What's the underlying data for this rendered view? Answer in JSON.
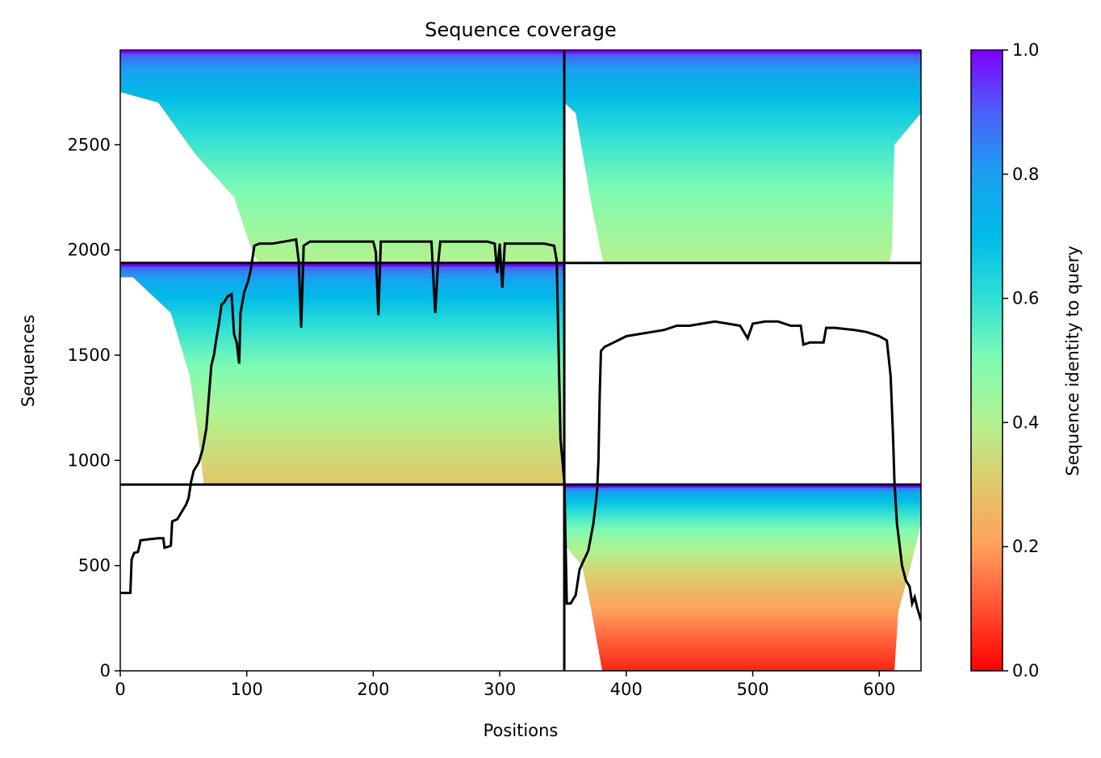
{
  "chart_data": {
    "type": "heatmap",
    "title": "Sequence coverage",
    "xlabel": "Positions",
    "ylabel": "Sequences",
    "xlim": [
      0,
      633
    ],
    "ylim": [
      0,
      2950
    ],
    "xticks": [
      0,
      100,
      200,
      300,
      400,
      500,
      600
    ],
    "yticks": [
      0,
      500,
      1000,
      1500,
      2000,
      2500
    ],
    "grid": false,
    "colorbar": {
      "label": "Sequence identity to query",
      "colormap": "rainbow_r",
      "range": [
        0.0,
        1.0
      ],
      "ticks": [
        "0.0",
        "0.2",
        "0.4",
        "0.6",
        "0.8",
        "1.0"
      ]
    },
    "colors": {
      "line": "#000000",
      "id_0.2": "#ff9f5c",
      "id_0.3": "#e0c96a",
      "id_0.4": "#b2f28f",
      "id_0.5": "#7ffbb3",
      "id_0.6": "#2fe0d6",
      "id_0.8": "#1aa0f0",
      "id_1.0": "#7f00ff"
    },
    "chain_boundaries": {
      "x": [
        351
      ],
      "y": [
        885,
        1938
      ]
    },
    "blocks": [
      {
        "x": [
          0,
          351
        ],
        "y": [
          1938,
          2950
        ],
        "identity_top": 1.0,
        "identity_bottom": 0.4
      },
      {
        "x": [
          0,
          351
        ],
        "y": [
          885,
          1938
        ],
        "identity_top": 1.0,
        "identity_bottom": 0.3
      },
      {
        "x": [
          351,
          633
        ],
        "y": [
          1938,
          2950
        ],
        "identity_top": 1.0,
        "identity_bottom": 0.4
      },
      {
        "x": [
          351,
          633
        ],
        "y": [
          0,
          885
        ],
        "identity_top": 1.0,
        "identity_bottom": 0.05
      }
    ],
    "series": [
      {
        "type": "line",
        "points": [
          [
            0,
            370
          ],
          [
            8,
            370
          ],
          [
            9,
            530
          ],
          [
            11,
            560
          ],
          [
            14,
            565
          ],
          [
            15,
            590
          ],
          [
            16,
            620
          ],
          [
            22,
            625
          ],
          [
            30,
            630
          ],
          [
            34,
            630
          ],
          [
            35,
            585
          ],
          [
            38,
            590
          ],
          [
            40,
            595
          ],
          [
            41,
            710
          ],
          [
            45,
            720
          ],
          [
            47,
            740
          ],
          [
            50,
            770
          ],
          [
            52,
            790
          ],
          [
            54,
            820
          ],
          [
            56,
            900
          ],
          [
            58,
            950
          ],
          [
            62,
            990
          ],
          [
            65,
            1050
          ],
          [
            68,
            1150
          ],
          [
            70,
            1300
          ],
          [
            72,
            1450
          ],
          [
            74,
            1500
          ],
          [
            76,
            1580
          ],
          [
            78,
            1650
          ],
          [
            80,
            1740
          ],
          [
            82,
            1750
          ],
          [
            85,
            1780
          ],
          [
            88,
            1790
          ],
          [
            90,
            1600
          ],
          [
            92,
            1560
          ],
          [
            94,
            1460
          ],
          [
            95,
            1700
          ],
          [
            98,
            1800
          ],
          [
            101,
            1850
          ],
          [
            103,
            1900
          ],
          [
            106,
            2020
          ],
          [
            110,
            2030
          ],
          [
            120,
            2030
          ],
          [
            130,
            2040
          ],
          [
            139,
            2050
          ],
          [
            141,
            1950
          ],
          [
            143,
            1630
          ],
          [
            145,
            2020
          ],
          [
            150,
            2040
          ],
          [
            160,
            2040
          ],
          [
            180,
            2040
          ],
          [
            200,
            2040
          ],
          [
            202,
            1990
          ],
          [
            204,
            1690
          ],
          [
            206,
            2040
          ],
          [
            220,
            2040
          ],
          [
            240,
            2040
          ],
          [
            246,
            2040
          ],
          [
            249,
            1700
          ],
          [
            251,
            1920
          ],
          [
            253,
            2040
          ],
          [
            270,
            2040
          ],
          [
            290,
            2040
          ],
          [
            296,
            2030
          ],
          [
            298,
            1890
          ],
          [
            300,
            2030
          ],
          [
            302,
            1820
          ],
          [
            304,
            2030
          ],
          [
            320,
            2030
          ],
          [
            335,
            2030
          ],
          [
            343,
            2020
          ],
          [
            345,
            1950
          ],
          [
            348,
            1100
          ],
          [
            351,
            900
          ],
          [
            353,
            320
          ],
          [
            356,
            320
          ],
          [
            360,
            360
          ],
          [
            363,
            480
          ],
          [
            366,
            520
          ],
          [
            370,
            570
          ],
          [
            374,
            700
          ],
          [
            376,
            800
          ],
          [
            377,
            860
          ],
          [
            378,
            1000
          ],
          [
            379,
            1300
          ],
          [
            380,
            1520
          ],
          [
            383,
            1540
          ],
          [
            390,
            1560
          ],
          [
            400,
            1590
          ],
          [
            410,
            1600
          ],
          [
            420,
            1610
          ],
          [
            430,
            1620
          ],
          [
            440,
            1640
          ],
          [
            450,
            1640
          ],
          [
            460,
            1650
          ],
          [
            470,
            1660
          ],
          [
            480,
            1650
          ],
          [
            490,
            1640
          ],
          [
            496,
            1580
          ],
          [
            500,
            1650
          ],
          [
            510,
            1660
          ],
          [
            520,
            1660
          ],
          [
            530,
            1640
          ],
          [
            538,
            1640
          ],
          [
            540,
            1550
          ],
          [
            545,
            1560
          ],
          [
            556,
            1560
          ],
          [
            558,
            1630
          ],
          [
            565,
            1630
          ],
          [
            580,
            1620
          ],
          [
            590,
            1610
          ],
          [
            600,
            1590
          ],
          [
            606,
            1570
          ],
          [
            609,
            1400
          ],
          [
            611,
            1100
          ],
          [
            612,
            900
          ],
          [
            614,
            700
          ],
          [
            616,
            600
          ],
          [
            618,
            500
          ],
          [
            621,
            430
          ],
          [
            624,
            400
          ],
          [
            626,
            320
          ],
          [
            628,
            350
          ],
          [
            630,
            300
          ],
          [
            633,
            240
          ]
        ]
      }
    ]
  }
}
